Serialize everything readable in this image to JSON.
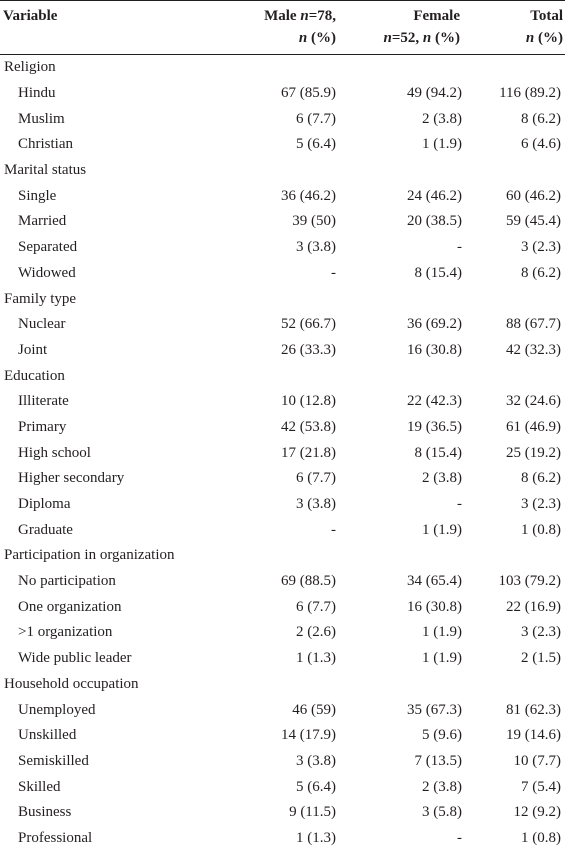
{
  "header": {
    "variable": "Variable",
    "male_line1": "Male ",
    "male_n_italic": "n",
    "male_line1_end": "=78,",
    "male_line2_italic": "n",
    "male_line2_end": " (%)",
    "female_line1": "Female",
    "female_line2_italic": "n",
    "female_line2_mid": "=52, ",
    "female_line2_italic2": "n",
    "female_line2_end": " (%)",
    "total_line1": "Total",
    "total_line2_italic": "n",
    "total_line2_end": " (%)"
  },
  "sections": [
    {
      "label": "Religion",
      "rows": [
        {
          "label": "Hindu",
          "male": "67 (85.9)",
          "female": "49 (94.2)",
          "total": "116 (89.2)"
        },
        {
          "label": "Muslim",
          "male": "6 (7.7)",
          "female": "2 (3.8)",
          "total": "8 (6.2)"
        },
        {
          "label": "Christian",
          "male": "5 (6.4)",
          "female": "1 (1.9)",
          "total": "6 (4.6)"
        }
      ]
    },
    {
      "label": "Marital status",
      "rows": [
        {
          "label": "Single",
          "male": "36 (46.2)",
          "female": "24 (46.2)",
          "total": "60 (46.2)"
        },
        {
          "label": "Married",
          "male": "39 (50)",
          "female": "20 (38.5)",
          "total": "59 (45.4)"
        },
        {
          "label": "Separated",
          "male": "3 (3.8)",
          "female": "-",
          "total": "3 (2.3)"
        },
        {
          "label": "Widowed",
          "male": "-",
          "female": "8 (15.4)",
          "total": "8 (6.2)"
        }
      ]
    },
    {
      "label": "Family type",
      "rows": [
        {
          "label": "Nuclear",
          "male": "52 (66.7)",
          "female": "36 (69.2)",
          "total": "88 (67.7)"
        },
        {
          "label": "Joint",
          "male": "26 (33.3)",
          "female": "16 (30.8)",
          "total": "42 (32.3)"
        }
      ]
    },
    {
      "label": "Education",
      "rows": [
        {
          "label": "Illiterate",
          "male": "10 (12.8)",
          "female": "22 (42.3)",
          "total": "32 (24.6)"
        },
        {
          "label": "Primary",
          "male": "42 (53.8)",
          "female": "19 (36.5)",
          "total": "61 (46.9)"
        },
        {
          "label": "High school",
          "male": "17 (21.8)",
          "female": "8 (15.4)",
          "total": "25 (19.2)"
        },
        {
          "label": "Higher secondary",
          "male": "6 (7.7)",
          "female": "2 (3.8)",
          "total": "8 (6.2)"
        },
        {
          "label": "Diploma",
          "male": "3 (3.8)",
          "female": "-",
          "total": "3 (2.3)"
        },
        {
          "label": "Graduate",
          "male": "-",
          "female": "1 (1.9)",
          "total": "1 (0.8)"
        }
      ]
    },
    {
      "label": "Participation in organization",
      "rows": [
        {
          "label": "No participation",
          "male": "69 (88.5)",
          "female": "34 (65.4)",
          "total": "103 (79.2)"
        },
        {
          "label": "One organization",
          "male": "6 (7.7)",
          "female": "16 (30.8)",
          "total": "22 (16.9)"
        },
        {
          "label": ">1 organization",
          "male": "2 (2.6)",
          "female": "1 (1.9)",
          "total": "3 (2.3)"
        },
        {
          "label": "Wide public leader",
          "male": "1 (1.3)",
          "female": "1 (1.9)",
          "total": "2 (1.5)"
        }
      ]
    },
    {
      "label": "Household occupation",
      "rows": [
        {
          "label": "Unemployed",
          "male": "46 (59)",
          "female": "35 (67.3)",
          "total": "81 (62.3)"
        },
        {
          "label": "Unskilled",
          "male": "14 (17.9)",
          "female": "5 (9.6)",
          "total": "19 (14.6)"
        },
        {
          "label": "Semiskilled",
          "male": "3 (3.8)",
          "female": "7 (13.5)",
          "total": "10 (7.7)"
        },
        {
          "label": "Skilled",
          "male": "5 (6.4)",
          "female": "2 (3.8)",
          "total": "7 (5.4)"
        },
        {
          "label": "Business",
          "male": "9 (11.5)",
          "female": "3 (5.8)",
          "total": "12 (9.2)"
        },
        {
          "label": "Professional",
          "male": "1 (1.3)",
          "female": "-",
          "total": "1 (0.8)"
        }
      ]
    }
  ]
}
